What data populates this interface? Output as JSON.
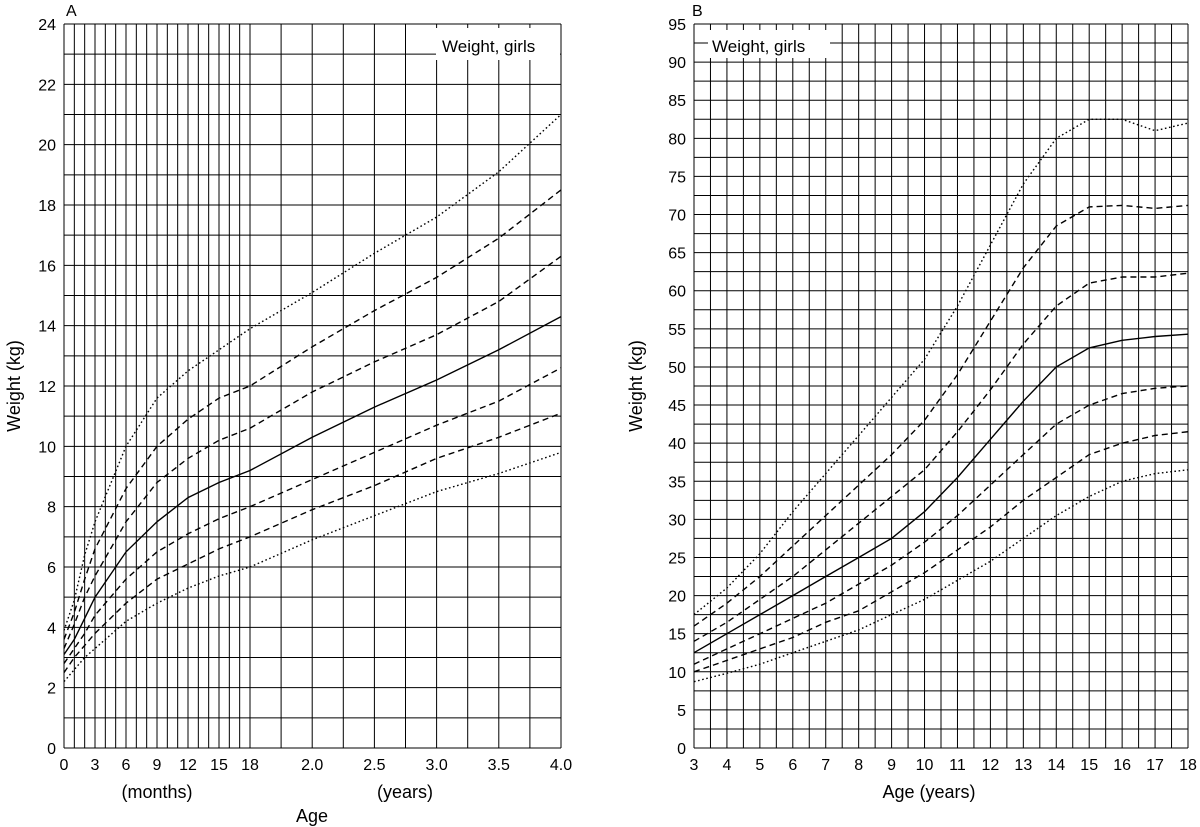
{
  "chart_data": [
    {
      "panel": "A",
      "type": "line",
      "title": "Weight, girls",
      "ylabel": "Weight (kg)",
      "xlabel": "Age",
      "xlabel_months": "(months)",
      "xlabel_years": "(years)",
      "ylim": [
        0,
        24
      ],
      "y_ticks": [
        "0",
        "2",
        "4",
        "6",
        "8",
        "10",
        "12",
        "14",
        "16",
        "18",
        "20",
        "22",
        "24"
      ],
      "x_tick_labels": [
        "0",
        "3",
        "6",
        "9",
        "12",
        "15",
        "18",
        "2.0",
        "2.5",
        "3.0",
        "3.5",
        "4.0"
      ],
      "grid": true,
      "series": [
        {
          "style": "dotted",
          "values": [
            [
              0,
              3.9
            ],
            [
              1,
              4.9
            ],
            [
              2,
              6.4
            ],
            [
              3,
              7.5
            ],
            [
              6,
              10.0
            ],
            [
              9,
              11.6
            ],
            [
              12,
              12.5
            ],
            [
              15,
              13.2
            ],
            [
              18,
              13.9
            ],
            [
              24,
              15.1
            ],
            [
              30,
              16.4
            ],
            [
              36,
              17.6
            ],
            [
              42,
              19.1
            ],
            [
              48,
              21.0
            ]
          ]
        },
        {
          "style": "dashed",
          "values": [
            [
              0,
              3.6
            ],
            [
              1,
              4.5
            ],
            [
              2,
              5.6
            ],
            [
              3,
              6.6
            ],
            [
              6,
              8.6
            ],
            [
              9,
              10.0
            ],
            [
              12,
              10.9
            ],
            [
              15,
              11.6
            ],
            [
              18,
              12.0
            ],
            [
              24,
              13.3
            ],
            [
              30,
              14.5
            ],
            [
              36,
              15.6
            ],
            [
              42,
              16.9
            ],
            [
              48,
              18.5
            ]
          ]
        },
        {
          "style": "dashed",
          "values": [
            [
              0,
              3.3
            ],
            [
              1,
              4.1
            ],
            [
              2,
              5.0
            ],
            [
              3,
              5.7
            ],
            [
              6,
              7.5
            ],
            [
              9,
              8.8
            ],
            [
              12,
              9.6
            ],
            [
              15,
              10.2
            ],
            [
              18,
              10.6
            ],
            [
              24,
              11.8
            ],
            [
              30,
              12.8
            ],
            [
              36,
              13.7
            ],
            [
              42,
              14.8
            ],
            [
              48,
              16.3
            ]
          ]
        },
        {
          "style": "solid",
          "values": [
            [
              0,
              3.1
            ],
            [
              1,
              3.6
            ],
            [
              2,
              4.3
            ],
            [
              3,
              5.0
            ],
            [
              6,
              6.5
            ],
            [
              9,
              7.5
            ],
            [
              12,
              8.3
            ],
            [
              15,
              8.8
            ],
            [
              18,
              9.2
            ],
            [
              24,
              10.3
            ],
            [
              30,
              11.3
            ],
            [
              36,
              12.2
            ],
            [
              42,
              13.2
            ],
            [
              48,
              14.3
            ]
          ]
        },
        {
          "style": "dashed",
          "values": [
            [
              0,
              2.8
            ],
            [
              1,
              3.3
            ],
            [
              2,
              3.8
            ],
            [
              3,
              4.4
            ],
            [
              6,
              5.6
            ],
            [
              9,
              6.5
            ],
            [
              12,
              7.1
            ],
            [
              15,
              7.6
            ],
            [
              18,
              8.0
            ],
            [
              24,
              8.9
            ],
            [
              30,
              9.8
            ],
            [
              36,
              10.7
            ],
            [
              42,
              11.5
            ],
            [
              48,
              12.6
            ]
          ]
        },
        {
          "style": "dashed",
          "values": [
            [
              0,
              2.5
            ],
            [
              1,
              3.0
            ],
            [
              2,
              3.4
            ],
            [
              3,
              3.8
            ],
            [
              6,
              4.8
            ],
            [
              9,
              5.6
            ],
            [
              12,
              6.1
            ],
            [
              15,
              6.6
            ],
            [
              18,
              7.0
            ],
            [
              24,
              7.9
            ],
            [
              30,
              8.7
            ],
            [
              36,
              9.6
            ],
            [
              42,
              10.3
            ],
            [
              48,
              11.1
            ]
          ]
        },
        {
          "style": "dotted",
          "values": [
            [
              0,
              2.2
            ],
            [
              1,
              2.6
            ],
            [
              2,
              3.0
            ],
            [
              3,
              3.3
            ],
            [
              6,
              4.2
            ],
            [
              9,
              4.8
            ],
            [
              12,
              5.3
            ],
            [
              15,
              5.7
            ],
            [
              18,
              6.0
            ],
            [
              24,
              6.9
            ],
            [
              30,
              7.7
            ],
            [
              36,
              8.5
            ],
            [
              42,
              9.1
            ],
            [
              48,
              9.8
            ]
          ]
        }
      ]
    },
    {
      "panel": "B",
      "type": "line",
      "title": "Weight, girls",
      "ylabel": "Weight (kg)",
      "xlabel": "Age (years)",
      "ylim": [
        0,
        95
      ],
      "xlim": [
        3,
        18
      ],
      "y_ticks": [
        "0",
        "5",
        "10",
        "15",
        "20",
        "25",
        "30",
        "35",
        "40",
        "45",
        "50",
        "55",
        "60",
        "65",
        "70",
        "75",
        "80",
        "85",
        "90",
        "95"
      ],
      "x_ticks": [
        "3",
        "4",
        "5",
        "6",
        "7",
        "8",
        "9",
        "10",
        "11",
        "12",
        "13",
        "14",
        "15",
        "16",
        "17",
        "18"
      ],
      "grid": true,
      "series": [
        {
          "style": "dotted",
          "values": [
            [
              3,
              17.5
            ],
            [
              4,
              21
            ],
            [
              5,
              25.5
            ],
            [
              6,
              31
            ],
            [
              7,
              36
            ],
            [
              8,
              41
            ],
            [
              9,
              46
            ],
            [
              10,
              51
            ],
            [
              11,
              58
            ],
            [
              12,
              66
            ],
            [
              13,
              74
            ],
            [
              14,
              80
            ],
            [
              15,
              82.5
            ],
            [
              16,
              82.5
            ],
            [
              17,
              81
            ],
            [
              18,
              82
            ]
          ]
        },
        {
          "style": "dashed",
          "values": [
            [
              3,
              16
            ],
            [
              4,
              19
            ],
            [
              5,
              22.5
            ],
            [
              6,
              26.5
            ],
            [
              7,
              30.5
            ],
            [
              8,
              34.5
            ],
            [
              9,
              38.5
            ],
            [
              10,
              43
            ],
            [
              11,
              49
            ],
            [
              12,
              56
            ],
            [
              13,
              63
            ],
            [
              14,
              68.5
            ],
            [
              15,
              71
            ],
            [
              16,
              71.2
            ],
            [
              17,
              70.8
            ],
            [
              18,
              71.2
            ]
          ]
        },
        {
          "style": "dashed",
          "values": [
            [
              3,
              14
            ],
            [
              4,
              16.5
            ],
            [
              5,
              19.5
            ],
            [
              6,
              22.5
            ],
            [
              7,
              26
            ],
            [
              8,
              29.5
            ],
            [
              9,
              33
            ],
            [
              10,
              36.5
            ],
            [
              11,
              41.5
            ],
            [
              12,
              47
            ],
            [
              13,
              53
            ],
            [
              14,
              58
            ],
            [
              15,
              61
            ],
            [
              16,
              61.8
            ],
            [
              17,
              61.8
            ],
            [
              18,
              62.3
            ]
          ]
        },
        {
          "style": "solid",
          "values": [
            [
              3,
              12.5
            ],
            [
              4,
              15
            ],
            [
              5,
              17.5
            ],
            [
              6,
              20
            ],
            [
              7,
              22.5
            ],
            [
              8,
              25
            ],
            [
              9,
              27.5
            ],
            [
              10,
              31
            ],
            [
              11,
              35.5
            ],
            [
              12,
              40.5
            ],
            [
              13,
              45.5
            ],
            [
              14,
              50
            ],
            [
              15,
              52.5
            ],
            [
              16,
              53.5
            ],
            [
              17,
              54
            ],
            [
              18,
              54.3
            ]
          ]
        },
        {
          "style": "dashed",
          "values": [
            [
              3,
              11
            ],
            [
              4,
              13
            ],
            [
              5,
              15
            ],
            [
              6,
              17
            ],
            [
              7,
              19
            ],
            [
              8,
              21.5
            ],
            [
              9,
              24
            ],
            [
              10,
              27
            ],
            [
              11,
              30.5
            ],
            [
              12,
              34.5
            ],
            [
              13,
              38.5
            ],
            [
              14,
              42.5
            ],
            [
              15,
              45
            ],
            [
              16,
              46.5
            ],
            [
              17,
              47.2
            ],
            [
              18,
              47.5
            ]
          ]
        },
        {
          "style": "dashed",
          "values": [
            [
              3,
              10
            ],
            [
              4,
              11.5
            ],
            [
              5,
              13
            ],
            [
              6,
              14.5
            ],
            [
              7,
              16.5
            ],
            [
              8,
              18
            ],
            [
              9,
              20.5
            ],
            [
              10,
              23
            ],
            [
              11,
              26
            ],
            [
              12,
              29
            ],
            [
              13,
              32.5
            ],
            [
              14,
              35.5
            ],
            [
              15,
              38.5
            ],
            [
              16,
              40
            ],
            [
              17,
              41
            ],
            [
              18,
              41.5
            ]
          ]
        },
        {
          "style": "dotted",
          "values": [
            [
              3,
              8.7
            ],
            [
              4,
              9.8
            ],
            [
              5,
              11
            ],
            [
              6,
              12.5
            ],
            [
              7,
              14
            ],
            [
              8,
              15.5
            ],
            [
              9,
              17.5
            ],
            [
              10,
              19.5
            ],
            [
              11,
              22
            ],
            [
              12,
              24.5
            ],
            [
              13,
              27.5
            ],
            [
              14,
              30.5
            ],
            [
              15,
              33
            ],
            [
              16,
              35
            ],
            [
              17,
              36
            ],
            [
              18,
              36.5
            ]
          ]
        }
      ]
    }
  ],
  "panel_a": {
    "letter": "A"
  },
  "panel_b": {
    "letter": "B"
  }
}
